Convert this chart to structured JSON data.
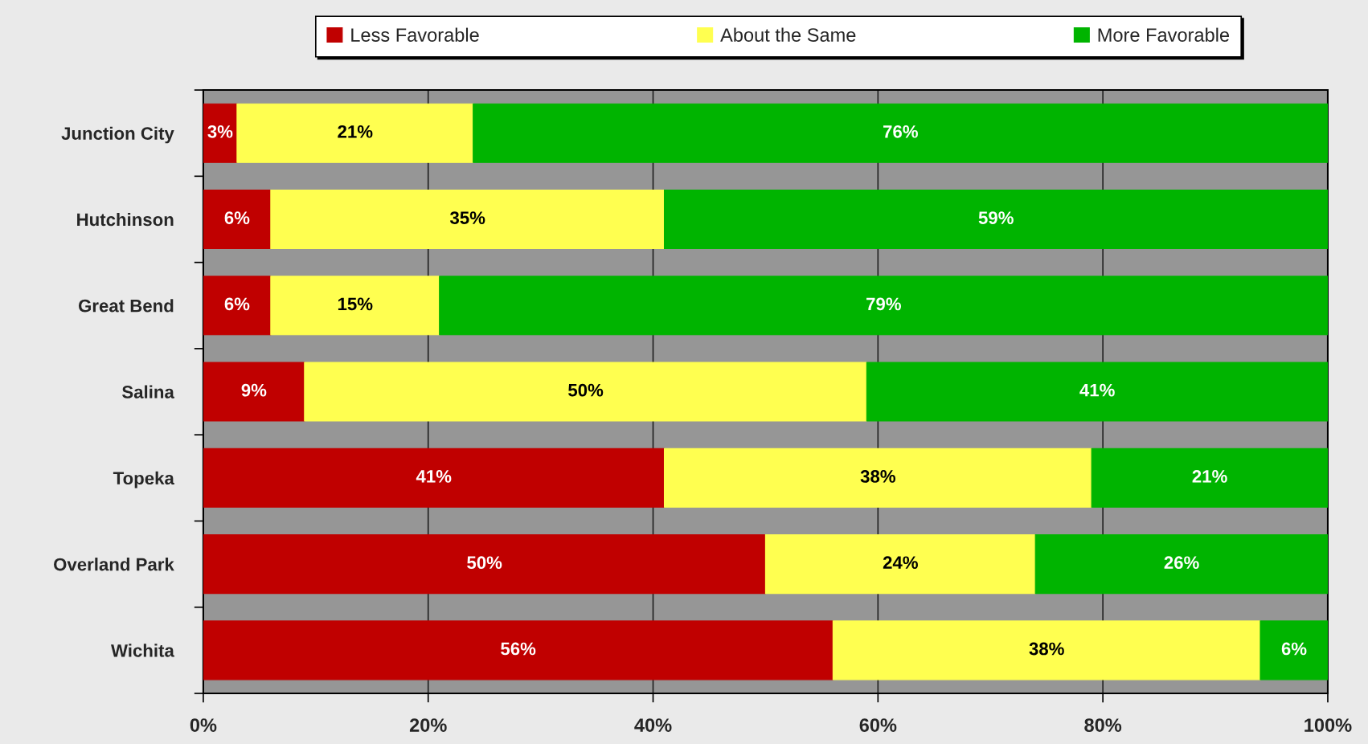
{
  "chart_data": {
    "type": "bar",
    "orientation": "horizontal",
    "stacked": true,
    "categories": [
      "Junction City",
      "Hutchinson",
      "Great Bend",
      "Salina",
      "Topeka",
      "Overland Park",
      "Wichita"
    ],
    "series": [
      {
        "name": "Less Favorable",
        "color": "#c00000",
        "values": [
          3,
          6,
          6,
          9,
          41,
          50,
          56
        ],
        "value_labels": [
          "3%",
          "6%",
          "6%",
          "9%",
          "41%",
          "50%",
          "56%"
        ]
      },
      {
        "name": "About the Same",
        "color": "#ffff50",
        "values": [
          21,
          35,
          15,
          50,
          38,
          24,
          38
        ],
        "value_labels": [
          "21%",
          "35%",
          "15%",
          "50%",
          "38%",
          "24%",
          "38%"
        ]
      },
      {
        "name": "More Favorable",
        "color": "#00b400",
        "values": [
          76,
          59,
          79,
          41,
          21,
          26,
          6
        ],
        "value_labels": [
          "76%",
          "59%",
          "79%",
          "41%",
          "21%",
          "26%",
          "6%"
        ]
      }
    ],
    "xlim": [
      0,
      100
    ],
    "xticks": [
      {
        "value": 0,
        "label": "0%"
      },
      {
        "value": 20,
        "label": "20%"
      },
      {
        "value": 40,
        "label": "40%"
      },
      {
        "value": 60,
        "label": "60%"
      },
      {
        "value": 80,
        "label": "80%"
      },
      {
        "value": 100,
        "label": "100%"
      }
    ],
    "grid": "x",
    "legend": "top"
  }
}
